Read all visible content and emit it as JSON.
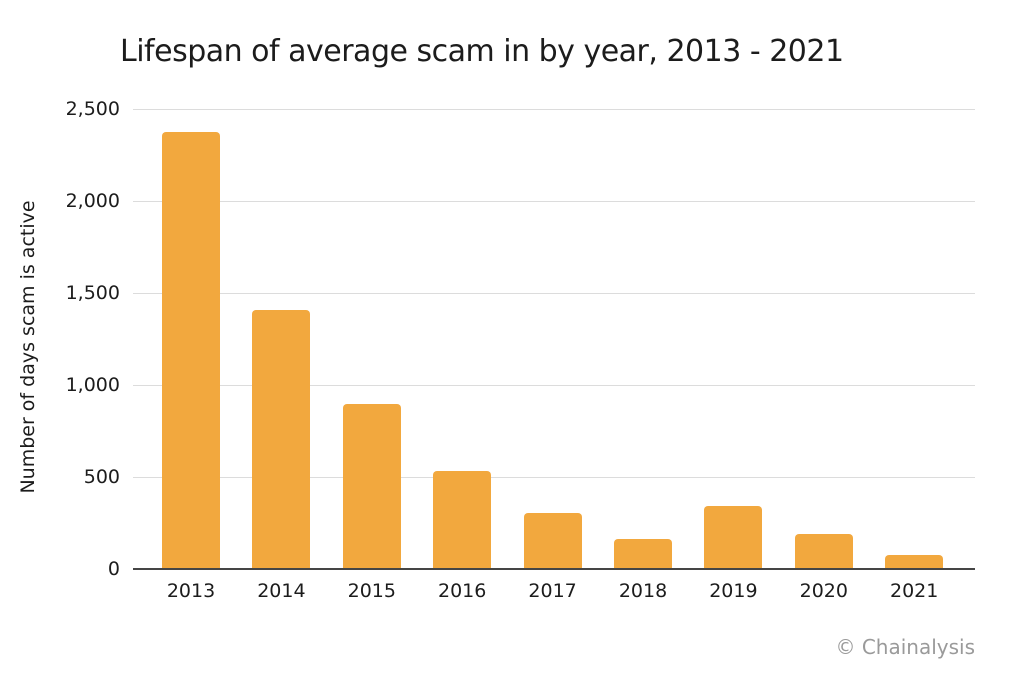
{
  "title": "Lifespan of average scam in by year, 2013 - 2021",
  "attribution": "© Chainalysis",
  "colors": {
    "bar": "#F2A83E",
    "gridline": "#DCDCDC",
    "axis_line": "#454545",
    "text": "#1C1C1C",
    "attribution_text": "#9A9A9A",
    "background": "#FFFFFF"
  },
  "chart_data": {
    "type": "bar",
    "title": "Lifespan of average scam in by year, 2013 - 2021",
    "categories": [
      "2013",
      "2014",
      "2015",
      "2016",
      "2017",
      "2018",
      "2019",
      "2020",
      "2021"
    ],
    "values": [
      2369,
      1404,
      891,
      529,
      298,
      156,
      335,
      187,
      70
    ],
    "xlabel": "",
    "ylabel": "Number of days scam is active",
    "ylim": [
      0,
      2500
    ],
    "yticks": [
      0,
      500,
      1000,
      1500,
      2000,
      2500
    ],
    "ytick_labels": [
      "0",
      "500",
      "1,000",
      "1,500",
      "2,000",
      "2,500"
    ],
    "grid": true,
    "legend": false,
    "bar_color": "#F2A83E"
  }
}
